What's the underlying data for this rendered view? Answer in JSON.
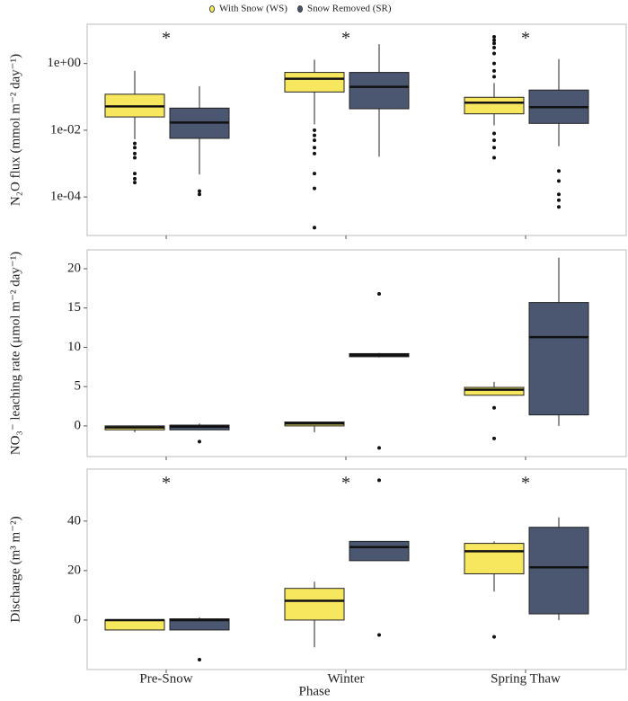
{
  "chart_data": {
    "type": "box",
    "categories": [
      "Pre-Snow",
      "Winter",
      "Spring Thaw"
    ],
    "xlabel": "Phase",
    "series": [
      {
        "name": "With Snow (WS)",
        "color": "#f7e75e"
      },
      {
        "name": "Snow Removed (SR)",
        "color": "#4b5670"
      }
    ],
    "panels": [
      {
        "ylabel": "N₂O flux (mmol m⁻² day⁻¹)",
        "log": true,
        "ylim": [
          7e-06,
          15
        ],
        "yticks": [
          {
            "value": 0.0001,
            "label": "1e-04"
          },
          {
            "value": 0.01,
            "label": "1e-02"
          },
          {
            "value": 1,
            "label": "1e+00"
          }
        ],
        "annotations": [
          {
            "category": "Pre-Snow",
            "text": "*"
          },
          {
            "category": "Winter",
            "text": "*"
          },
          {
            "category": "Spring Thaw",
            "text": "*"
          }
        ],
        "data": [
          [
            {
              "min": 0.0054,
              "q1": 0.025,
              "median": 0.052,
              "q3": 0.12,
              "max": 0.6,
              "outliers": [
                0.004,
                0.003,
                0.002,
                0.0015,
                0.0005,
                0.00035,
                0.00027
              ]
            },
            {
              "min": 0.015,
              "q1": 0.14,
              "median": 0.35,
              "q3": 0.54,
              "max": 1.3,
              "outliers": [
                0.01,
                0.007,
                0.005,
                0.003,
                0.002,
                0.0005,
                0.00018,
                1.2e-05
              ]
            },
            {
              "min": 0.014,
              "q1": 0.031,
              "median": 0.067,
              "q3": 0.097,
              "max": 0.26,
              "outliers": [
                0.4,
                0.6,
                1,
                2,
                3,
                4,
                5,
                6.3,
                0.008,
                0.005,
                0.003,
                0.0015
              ]
            }
          ],
          [
            {
              "min": 0.00047,
              "q1": 0.0057,
              "median": 0.017,
              "q3": 0.046,
              "max": 0.21,
              "outliers": [
                0.00015,
                0.00012
              ]
            },
            {
              "min": 0.0016,
              "q1": 0.044,
              "median": 0.2,
              "q3": 0.54,
              "max": 3.8,
              "outliers": []
            },
            {
              "min": 0.0033,
              "q1": 0.016,
              "median": 0.049,
              "q3": 0.16,
              "max": 1.36,
              "outliers": [
                0.0006,
                0.0003,
                0.00012,
                8e-05,
                5e-05
              ]
            }
          ]
        ]
      },
      {
        "ylabel": "NO₃⁻ leaching rate (μmol m⁻² day⁻¹)",
        "log": false,
        "ylim": [
          -3.9,
          22.4
        ],
        "yticks": [
          0,
          5,
          10,
          15,
          20
        ],
        "annotations": [],
        "data": [
          [
            {
              "min": -0.8,
              "q1": -0.5,
              "median": -0.2,
              "q3": 0,
              "max": 0,
              "outliers": []
            },
            {
              "min": -0.8,
              "q1": 0,
              "median": 0.3,
              "q3": 0.5,
              "max": 0.5,
              "outliers": []
            },
            {
              "min": 3.9,
              "q1": 3.9,
              "median": 4.6,
              "q3": 4.9,
              "max": 5.6,
              "outliers": [
                2.3,
                -1.6
              ]
            }
          ],
          [
            {
              "min": -0.5,
              "q1": -0.5,
              "median": -0.1,
              "q3": 0.1,
              "max": 0.3,
              "outliers": [
                -2
              ]
            },
            {
              "min": 8.7,
              "q1": 8.8,
              "median": 9,
              "q3": 9.2,
              "max": 9.3,
              "outliers": [
                16.8,
                -2.8
              ]
            },
            {
              "min": 0,
              "q1": 1.4,
              "median": 11.3,
              "q3": 15.7,
              "max": 21.4,
              "outliers": []
            }
          ]
        ]
      },
      {
        "ylabel": "Discharge (m³ m⁻²)",
        "log": false,
        "ylim": [
          -20,
          61
        ],
        "yticks": [
          0,
          20,
          40
        ],
        "annotations": [
          {
            "category": "Pre-Snow",
            "text": "*"
          },
          {
            "category": "Winter",
            "text": "*"
          },
          {
            "category": "Spring Thaw",
            "text": "*"
          }
        ],
        "data": [
          [
            {
              "min": -4,
              "q1": -4,
              "median": 0,
              "q3": 0,
              "max": 0,
              "outliers": []
            },
            {
              "min": -11,
              "q1": 0,
              "median": 7.8,
              "q3": 12.8,
              "max": 15.5,
              "outliers": []
            },
            {
              "min": 11.5,
              "q1": 18.7,
              "median": 27.8,
              "q3": 31,
              "max": 31.8,
              "outliers": [
                -6.8
              ]
            }
          ],
          [
            {
              "min": -4,
              "q1": -4,
              "median": 0,
              "q3": 0.5,
              "max": 1,
              "outliers": [
                -16
              ]
            },
            {
              "min": 24,
              "q1": 24,
              "median": 29.5,
              "q3": 31.8,
              "max": 31.8,
              "outliers": [
                56.5,
                -6
              ]
            },
            {
              "min": 0,
              "q1": 2.5,
              "median": 21.3,
              "q3": 37.5,
              "max": 41.5,
              "outliers": []
            }
          ]
        ]
      }
    ]
  }
}
